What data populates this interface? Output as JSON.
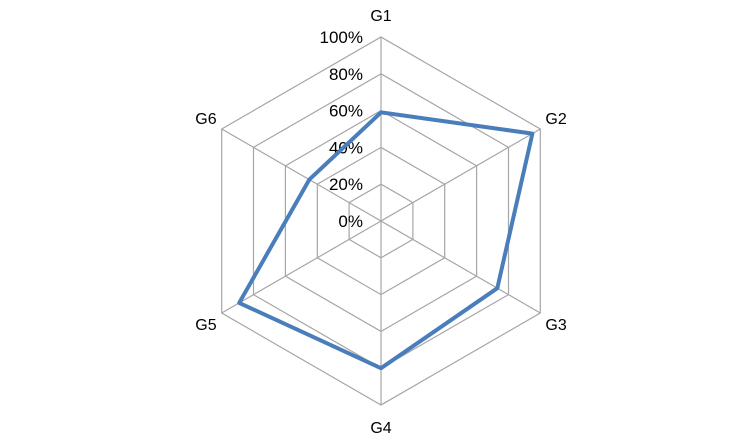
{
  "chart_data": {
    "type": "radar",
    "categories": [
      "G1",
      "G2",
      "G3",
      "G4",
      "G5",
      "G6"
    ],
    "series": [
      {
        "values": [
          59,
          95,
          73,
          80,
          89,
          45
        ]
      }
    ],
    "radial_ticks": [
      "0%",
      "20%",
      "40%",
      "60%",
      "80%",
      "100%"
    ],
    "rlim": [
      0,
      100
    ],
    "grid": true,
    "legend": "none",
    "colors": {
      "series": "#4a7ebb",
      "grid": "#a6a6a6",
      "text": "#000000"
    }
  }
}
